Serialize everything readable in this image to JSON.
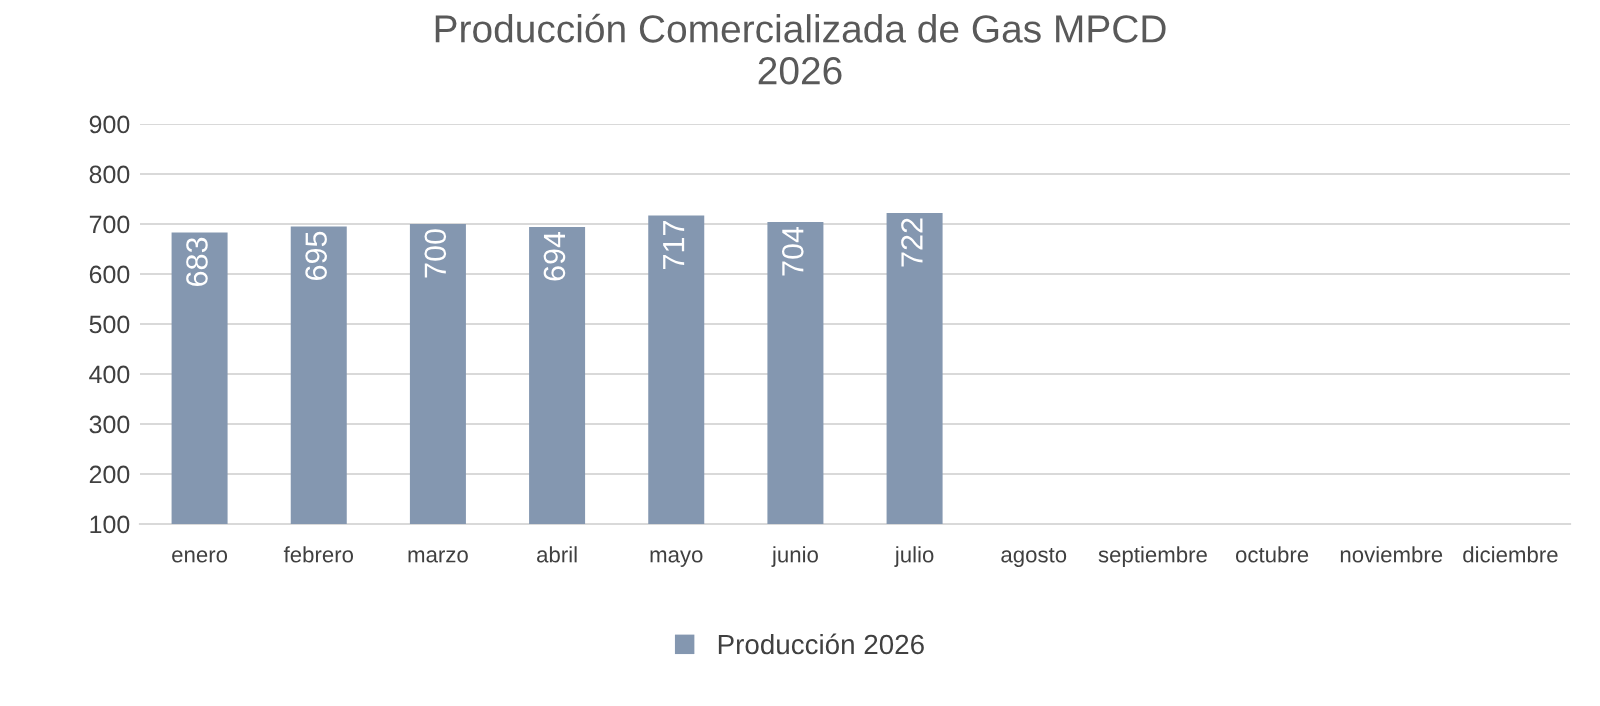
{
  "chart_data": {
    "type": "bar",
    "title": "Producción Comercializada de Gas MPCD\n2026",
    "categories": [
      "enero",
      "febrero",
      "marzo",
      "abril",
      "mayo",
      "junio",
      "julio",
      "agosto",
      "septiembre",
      "octubre",
      "noviembre",
      "diciembre"
    ],
    "series": [
      {
        "name": "Producción 2026",
        "color": "#8497b0",
        "values": [
          683,
          695,
          700,
          694,
          717,
          704,
          722,
          null,
          null,
          null,
          null,
          null
        ]
      }
    ],
    "ylim": [
      100,
      900
    ],
    "yticks": [
      100,
      200,
      300,
      400,
      500,
      600,
      700,
      800,
      900
    ],
    "grid": "y",
    "legend": "bottom",
    "data_labels": true
  }
}
